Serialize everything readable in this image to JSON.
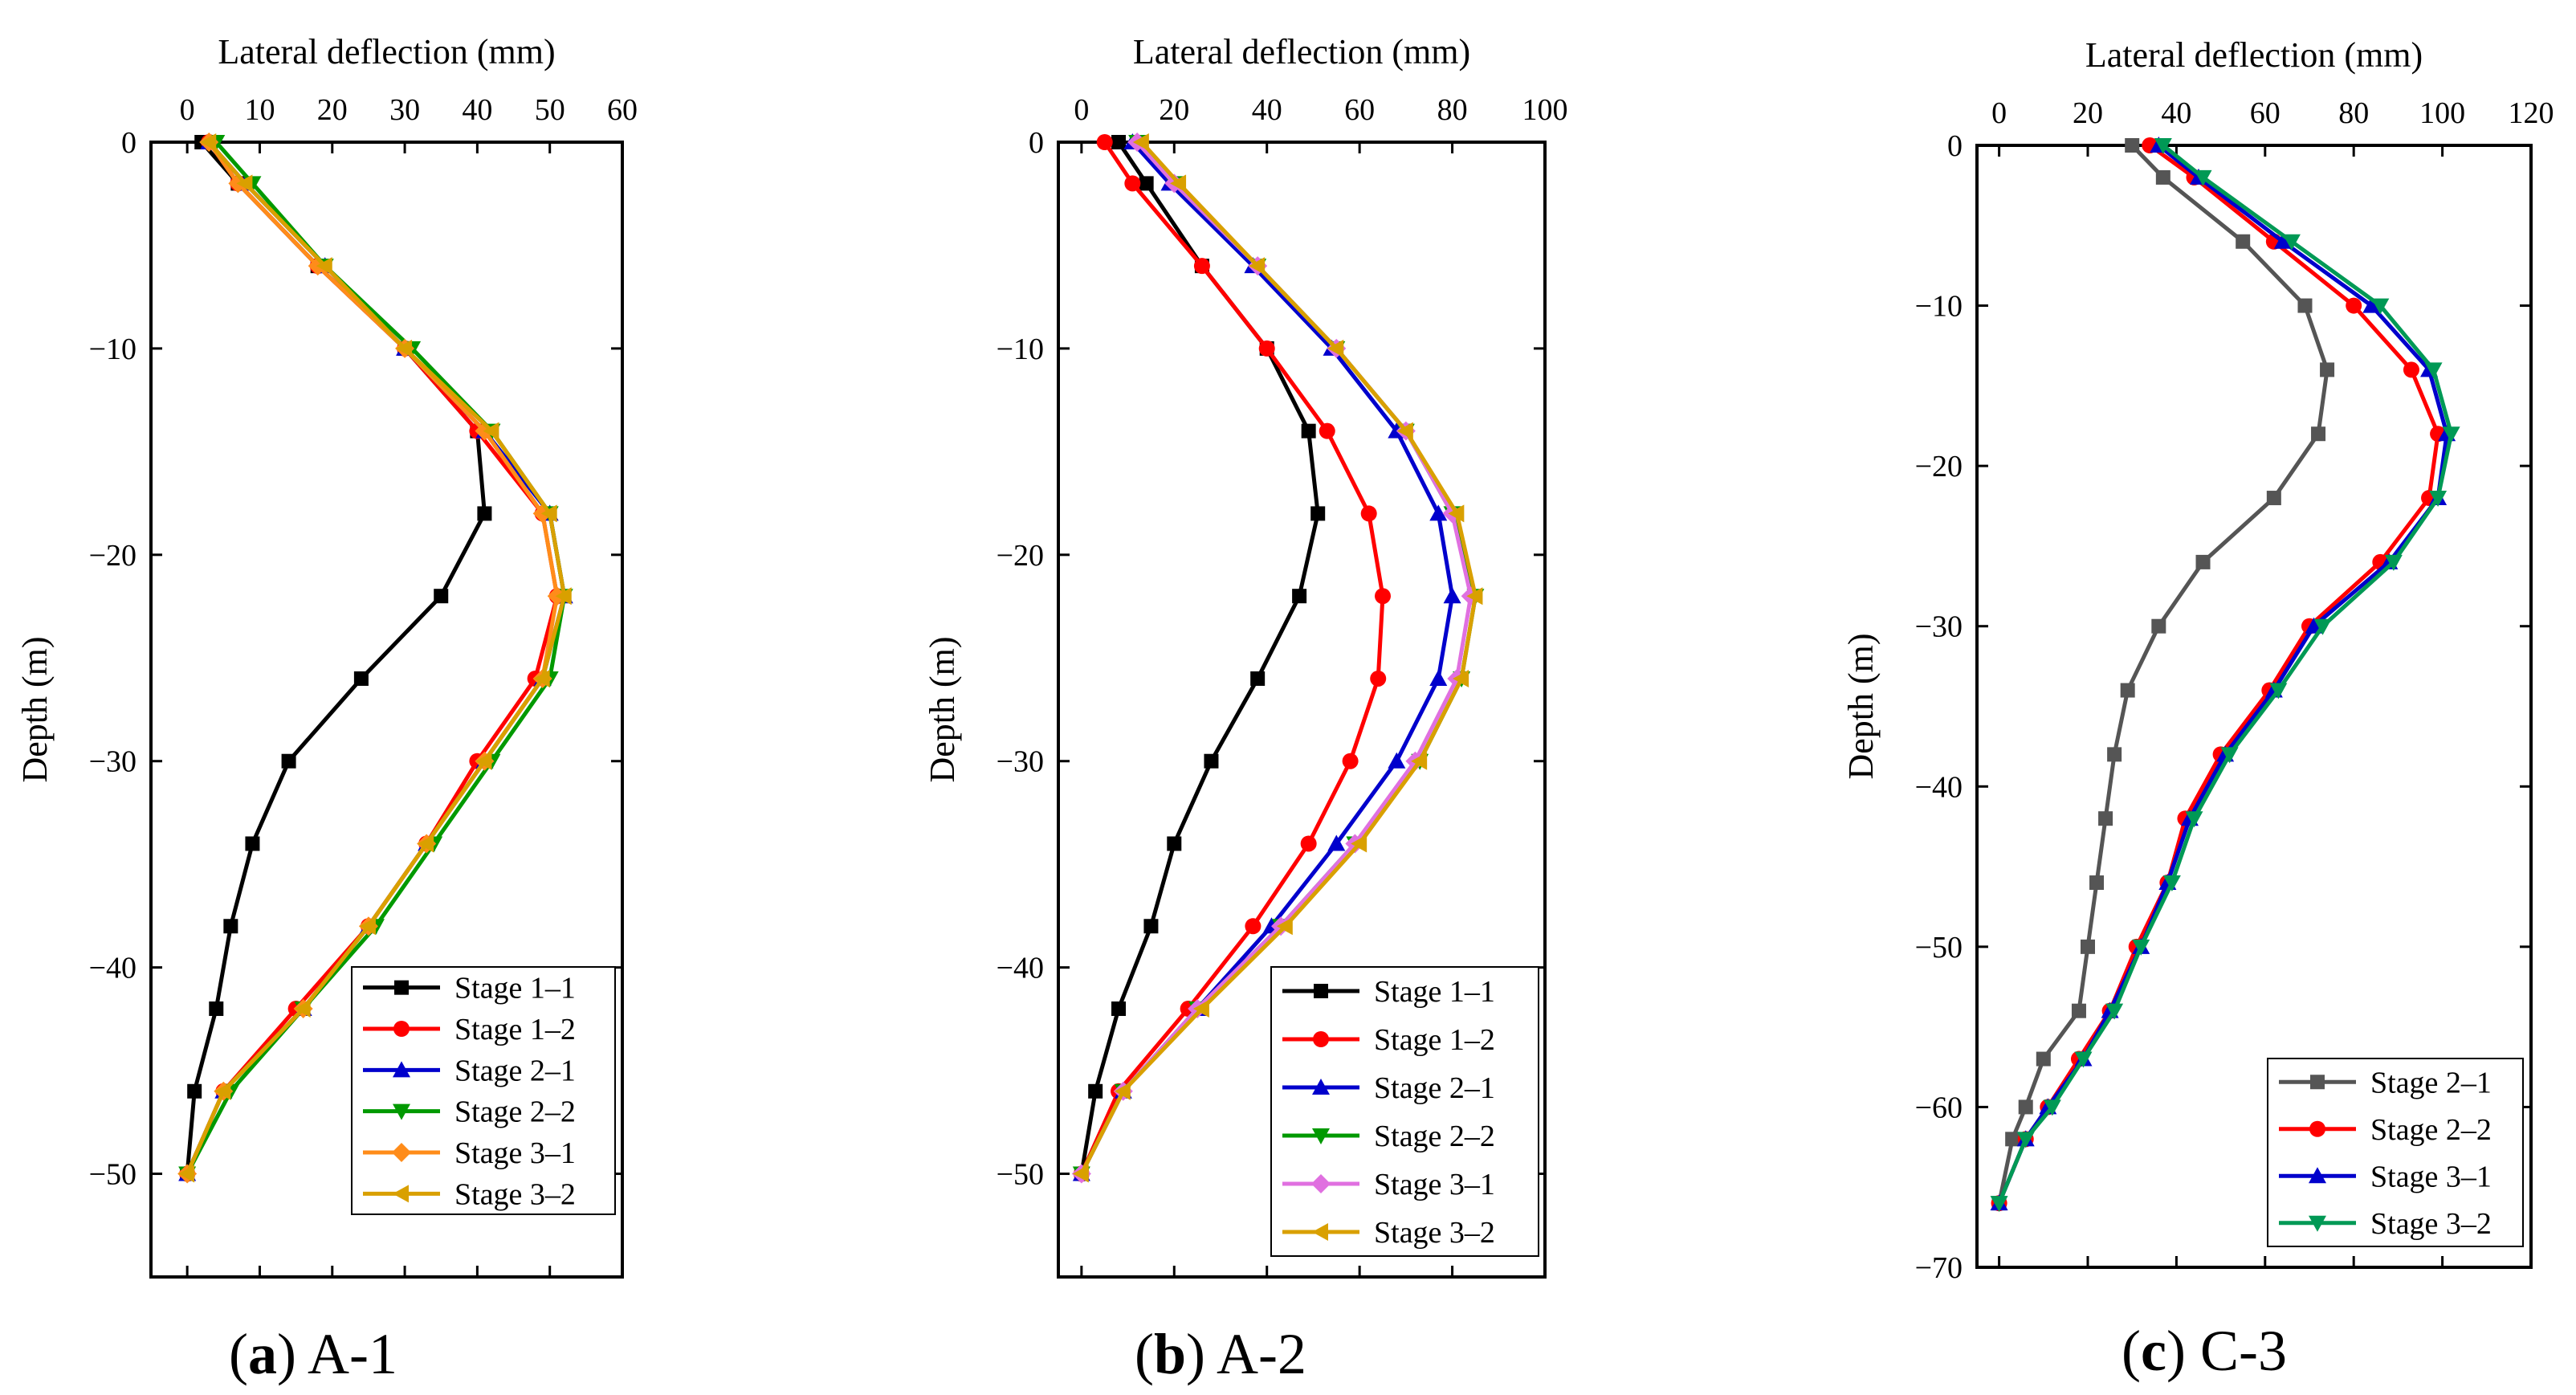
{
  "chart_data": [
    {
      "type": "line",
      "caption_letter": "a",
      "caption_open": "(",
      "caption_close": ")",
      "caption_name": "A-1",
      "xlabel": "Lateral deflection (mm)",
      "ylabel": "Depth (m)",
      "xlim": [
        -5,
        60
      ],
      "ylim": [
        -55,
        0
      ],
      "xticks": [
        0,
        10,
        20,
        30,
        40,
        50,
        60
      ],
      "xtick_labels": [
        "0",
        "10",
        "20",
        "30",
        "40",
        "50",
        "60"
      ],
      "yticks": [
        0,
        -10,
        -20,
        -30,
        -40,
        -50
      ],
      "ytick_labels": [
        "0",
        "−10",
        "−20",
        "−30",
        "−40",
        "−50"
      ],
      "legend_position": "bottom-right",
      "series": [
        {
          "name": "Stage 1–1",
          "color": "#000000",
          "marker": "square",
          "x": [
            2,
            7,
            18,
            30,
            40,
            41,
            35,
            24,
            14,
            9,
            6,
            4,
            1,
            0
          ],
          "y": [
            0,
            -2,
            -6,
            -10,
            -14,
            -18,
            -22,
            -26,
            -30,
            -34,
            -38,
            -42,
            -46,
            -50
          ]
        },
        {
          "name": "Stage 1–2",
          "color": "#ff0000",
          "marker": "circle",
          "x": [
            3,
            7,
            18,
            30,
            40,
            49,
            51,
            48,
            40,
            33,
            25,
            15,
            5,
            0
          ],
          "y": [
            0,
            -2,
            -6,
            -10,
            -14,
            -18,
            -22,
            -26,
            -30,
            -34,
            -38,
            -42,
            -46,
            -50
          ]
        },
        {
          "name": "Stage 2–1",
          "color": "#0000cc",
          "marker": "triangle-up",
          "x": [
            3,
            8,
            19,
            30,
            41,
            50,
            52,
            49,
            41,
            33,
            25,
            16,
            5,
            0
          ],
          "y": [
            0,
            -2,
            -6,
            -10,
            -14,
            -18,
            -22,
            -26,
            -30,
            -34,
            -38,
            -42,
            -46,
            -50
          ]
        },
        {
          "name": "Stage 2–2",
          "color": "#009900",
          "marker": "triangle-down",
          "x": [
            4,
            9,
            19,
            31,
            42,
            50,
            52,
            50,
            42,
            34,
            26,
            16,
            6,
            0
          ],
          "y": [
            0,
            -2,
            -6,
            -10,
            -14,
            -18,
            -22,
            -26,
            -30,
            -34,
            -38,
            -42,
            -46,
            -50
          ]
        },
        {
          "name": "Stage 3–1",
          "color": "#ff8c1a",
          "marker": "diamond",
          "x": [
            3,
            7,
            18,
            30,
            41,
            49,
            51,
            49,
            41,
            33,
            25,
            16,
            5,
            0
          ],
          "y": [
            0,
            -2,
            -6,
            -10,
            -14,
            -18,
            -22,
            -26,
            -30,
            -34,
            -38,
            -42,
            -46,
            -50
          ]
        },
        {
          "name": "Stage 3–2",
          "color": "#d9a000",
          "marker": "triangle-left",
          "x": [
            3,
            8,
            19,
            30,
            42,
            50,
            52,
            49,
            41,
            33,
            25,
            16,
            5,
            0
          ],
          "y": [
            0,
            -2,
            -6,
            -10,
            -14,
            -18,
            -22,
            -26,
            -30,
            -34,
            -38,
            -42,
            -46,
            -50
          ]
        }
      ]
    },
    {
      "type": "line",
      "caption_letter": "b",
      "caption_open": "(",
      "caption_close": ")",
      "caption_name": "A-2",
      "xlabel": "Lateral deflection (mm)",
      "ylabel": "Depth (m)",
      "xlim": [
        -5,
        100
      ],
      "ylim": [
        -55,
        0
      ],
      "xticks": [
        0,
        20,
        40,
        60,
        80,
        100
      ],
      "xtick_labels": [
        "0",
        "20",
        "40",
        "60",
        "80",
        "100"
      ],
      "yticks": [
        0,
        -10,
        -20,
        -30,
        -40,
        -50
      ],
      "ytick_labels": [
        "0",
        "−10",
        "−20",
        "−30",
        "−40",
        "−50"
      ],
      "legend_position": "bottom-right",
      "series": [
        {
          "name": "Stage 1–1",
          "color": "#000000",
          "marker": "square",
          "x": [
            8,
            14,
            26,
            40,
            49,
            51,
            47,
            38,
            28,
            20,
            15,
            8,
            3,
            0
          ],
          "y": [
            0,
            -2,
            -6,
            -10,
            -14,
            -18,
            -22,
            -26,
            -30,
            -34,
            -38,
            -42,
            -46,
            -50
          ]
        },
        {
          "name": "Stage 1–2",
          "color": "#ff0000",
          "marker": "circle",
          "x": [
            5,
            11,
            26,
            40,
            53,
            62,
            65,
            64,
            58,
            49,
            37,
            23,
            8,
            0
          ],
          "y": [
            0,
            -2,
            -6,
            -10,
            -14,
            -18,
            -22,
            -26,
            -30,
            -34,
            -38,
            -42,
            -46,
            -50
          ]
        },
        {
          "name": "Stage 2–1",
          "color": "#0000cc",
          "marker": "triangle-up",
          "x": [
            11,
            19,
            37,
            54,
            68,
            77,
            80,
            77,
            68,
            55,
            41,
            25,
            9,
            0
          ],
          "y": [
            0,
            -2,
            -6,
            -10,
            -14,
            -18,
            -22,
            -26,
            -30,
            -34,
            -38,
            -42,
            -46,
            -50
          ]
        },
        {
          "name": "Stage 2–2",
          "color": "#009900",
          "marker": "triangle-down",
          "x": [
            12,
            20,
            38,
            55,
            70,
            80,
            85,
            82,
            73,
            59,
            43,
            25,
            9,
            0
          ],
          "y": [
            0,
            -2,
            -6,
            -10,
            -14,
            -18,
            -22,
            -26,
            -30,
            -34,
            -38,
            -42,
            -46,
            -50
          ]
        },
        {
          "name": "Stage 3–1",
          "color": "#e070e0",
          "marker": "diamond",
          "x": [
            12,
            20,
            38,
            55,
            70,
            80,
            84,
            81,
            72,
            59,
            43,
            25,
            9,
            0
          ],
          "y": [
            0,
            -2,
            -6,
            -10,
            -14,
            -18,
            -22,
            -26,
            -30,
            -34,
            -38,
            -42,
            -46,
            -50
          ]
        },
        {
          "name": "Stage 3–2",
          "color": "#d9a000",
          "marker": "triangle-left",
          "x": [
            13,
            21,
            38,
            55,
            70,
            81,
            85,
            82,
            73,
            60,
            44,
            26,
            9,
            0
          ],
          "y": [
            0,
            -2,
            -6,
            -10,
            -14,
            -18,
            -22,
            -26,
            -30,
            -34,
            -38,
            -42,
            -46,
            -50
          ]
        }
      ]
    },
    {
      "type": "line",
      "caption_letter": "c",
      "caption_open": "(",
      "caption_close": ")",
      "caption_name": "C-3",
      "xlabel": "Lateral deflection (mm)",
      "ylabel": "Depth (m)",
      "xlim": [
        -5,
        120
      ],
      "ylim": [
        -70,
        0
      ],
      "xticks": [
        0,
        20,
        40,
        60,
        80,
        100,
        120
      ],
      "xtick_labels": [
        "0",
        "20",
        "40",
        "60",
        "80",
        "100",
        "120"
      ],
      "yticks": [
        0,
        -10,
        -20,
        -30,
        -40,
        -50,
        -60,
        -70
      ],
      "ytick_labels": [
        "0",
        "−10",
        "−20",
        "−30",
        "−40",
        "−50",
        "−60",
        "−70"
      ],
      "legend_position": "bottom-right",
      "series": [
        {
          "name": "Stage 2–1",
          "color": "#555555",
          "marker": "square",
          "x": [
            30,
            37,
            55,
            69,
            74,
            72,
            62,
            46,
            36,
            29,
            26,
            24,
            22,
            20,
            18,
            10,
            6,
            3,
            0
          ],
          "y": [
            0,
            -2,
            -6,
            -10,
            -14,
            -18,
            -22,
            -26,
            -30,
            -34,
            -38,
            -42,
            -46,
            -50,
            -54,
            -57,
            -60,
            -62,
            -66
          ]
        },
        {
          "name": "Stage 2–2",
          "color": "#ff0000",
          "marker": "circle",
          "x": [
            34,
            44,
            62,
            80,
            93,
            99,
            97,
            86,
            70,
            61,
            50,
            42,
            38,
            31,
            25,
            18,
            11,
            6,
            0
          ],
          "y": [
            0,
            -2,
            -6,
            -10,
            -14,
            -18,
            -22,
            -26,
            -30,
            -34,
            -38,
            -42,
            -46,
            -50,
            -54,
            -57,
            -60,
            -62,
            -66
          ]
        },
        {
          "name": "Stage 3–1",
          "color": "#0000cc",
          "marker": "triangle-up",
          "x": [
            36,
            45,
            64,
            84,
            97,
            101,
            99,
            88,
            71,
            62,
            51,
            43,
            38,
            32,
            25,
            19,
            11,
            6,
            0
          ],
          "y": [
            0,
            -2,
            -6,
            -10,
            -14,
            -18,
            -22,
            -26,
            -30,
            -34,
            -38,
            -42,
            -46,
            -50,
            -54,
            -57,
            -60,
            -62,
            -66
          ]
        },
        {
          "name": "Stage 3–2",
          "color": "#009955",
          "marker": "triangle-down",
          "x": [
            37,
            46,
            66,
            86,
            98,
            102,
            99,
            89,
            73,
            63,
            52,
            44,
            39,
            32,
            26,
            19,
            12,
            6,
            0
          ],
          "y": [
            0,
            -2,
            -6,
            -10,
            -14,
            -18,
            -22,
            -26,
            -30,
            -34,
            -38,
            -42,
            -46,
            -50,
            -54,
            -57,
            -60,
            -62,
            -66
          ]
        }
      ]
    }
  ]
}
